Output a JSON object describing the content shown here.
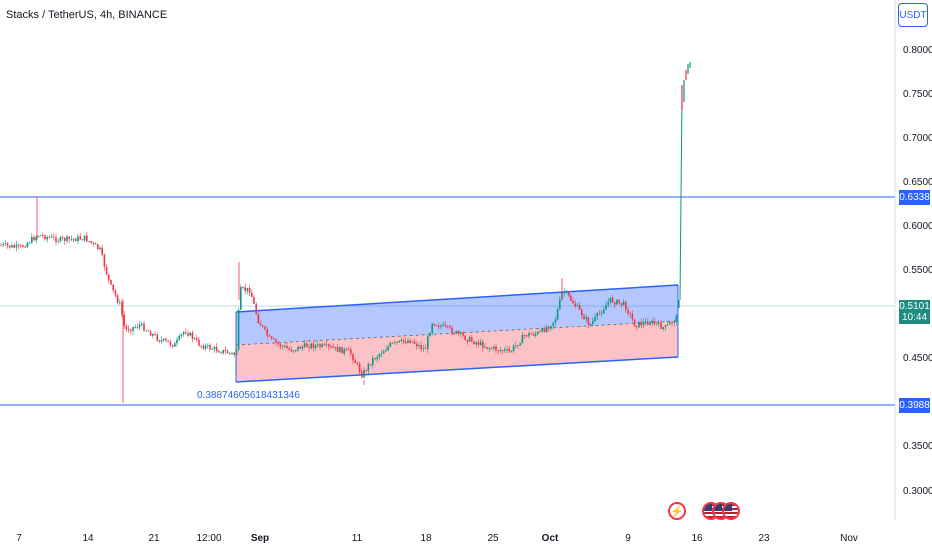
{
  "header": {
    "title": "Stacks / TetherUS, 4h, BINANCE",
    "currency": "USDT"
  },
  "y_axis": {
    "labels": [
      "0.8000",
      "0.7500",
      "0.7000",
      "0.6500",
      "0.6000",
      "0.5500",
      "0.4500",
      "0.3500",
      "0.3000"
    ]
  },
  "x_axis": {
    "labels": [
      "7",
      "14",
      "21",
      "12:00",
      "Sep",
      "11",
      "18",
      "25",
      "Oct",
      "9",
      "16",
      "23",
      "Nov"
    ]
  },
  "price_levels": {
    "resistance": "0.6338",
    "support": "0.3988",
    "current": "0.5101",
    "countdown": "10:44"
  },
  "annotation": {
    "text": "0.388746056184313​46"
  },
  "colors": {
    "up": "#089981",
    "down": "#f23645",
    "line": "#2962ff",
    "channel_upper": "#7b98ea",
    "channel_lower": "#f0a3ab"
  },
  "event_icons": [
    "flash-icon",
    "us-flag-icon",
    "us-flag-icon",
    "us-flag-icon"
  ]
}
